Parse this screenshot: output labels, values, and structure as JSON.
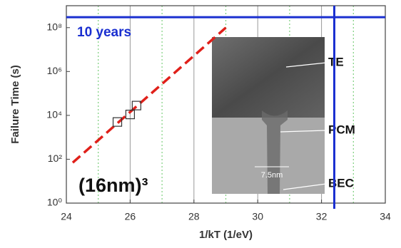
{
  "chart_data": {
    "type": "scatter",
    "x_label": "1/kT (1/eV)",
    "y_label": "Failure Time (s)",
    "xlim": [
      24,
      34
    ],
    "xticks": [
      24,
      26,
      28,
      30,
      32,
      34
    ],
    "minor_xticks": [
      25,
      27,
      29,
      31,
      33
    ],
    "ylim": [
      1,
      1000000000
    ],
    "log_y": true,
    "yticks": [
      {
        "value": 1,
        "label": "10⁰"
      },
      {
        "value": 100,
        "label": "10²"
      },
      {
        "value": 10000,
        "label": "10⁴"
      },
      {
        "value": 1000000,
        "label": "10⁶"
      },
      {
        "value": 100000000,
        "label": "10⁸"
      }
    ],
    "grid": true,
    "points": {
      "x": [
        25.6,
        26.0,
        26.2
      ],
      "values": [
        5000,
        11000,
        28000
      ],
      "color": "#333333"
    },
    "fit": {
      "x": [
        24.2,
        29
      ],
      "values": [
        70,
        100000000
      ],
      "color": "#e0201a"
    },
    "hline": {
      "value": 300000000,
      "label": "10 years",
      "color": "#1a2fd0"
    },
    "vline": {
      "value": 32.4,
      "color": "#1a2fd0"
    },
    "annotation": "(16nm)³",
    "inset": {
      "labels": [
        "TE",
        "PCM",
        "BEC"
      ],
      "scale": "7.5nm"
    }
  }
}
